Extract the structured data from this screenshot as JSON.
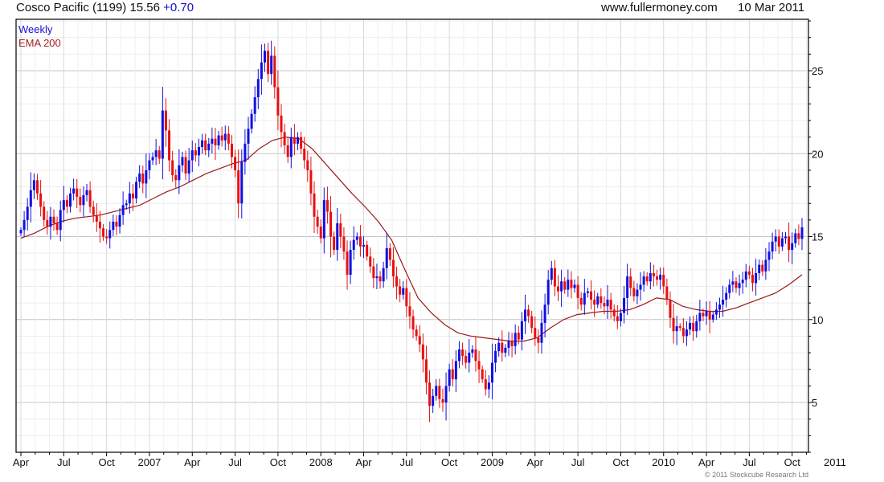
{
  "header": {
    "title": "Cosco Pacific (1199) 15.56",
    "change": "+0.70",
    "site": "www.fullermoney.com",
    "date": "10 Mar 2011"
  },
  "legend": {
    "series1": "Weekly",
    "series2": "EMA 200"
  },
  "footer": {
    "copyright": "© 2011 Stockcube Research Ltd"
  },
  "colors": {
    "up": "#1010e0",
    "down": "#e81010",
    "ema": "#9a1a1a"
  },
  "chart_data": {
    "type": "candlestick",
    "title": "Cosco Pacific (1199)",
    "ylim": [
      2,
      28.1
    ],
    "yticks": [
      5,
      10,
      15,
      20,
      25
    ],
    "xtick_labels": [
      "Apr",
      "Jul",
      "Oct",
      "2007",
      "Apr",
      "Jul",
      "Oct",
      "2008",
      "Apr",
      "Jul",
      "Oct",
      "2009",
      "Apr",
      "Jul",
      "Oct",
      "2010",
      "Apr",
      "Jul",
      "Oct",
      "2011"
    ],
    "period": "Weekly, Apr 2006 - Mar 2011",
    "weekly_close": [
      15.4,
      16.0,
      16.8,
      17.8,
      18.4,
      17.6,
      16.8,
      16.0,
      15.6,
      16.2,
      15.8,
      15.4,
      16.6,
      17.2,
      16.8,
      17.6,
      17.9,
      17.4,
      16.9,
      17.5,
      17.8,
      16.8,
      16.3,
      15.9,
      15.5,
      15.0,
      14.9,
      15.4,
      15.9,
      15.6,
      16.3,
      16.9,
      17.0,
      17.6,
      17.3,
      18.3,
      18.8,
      18.2,
      19.0,
      19.6,
      19.8,
      20.2,
      19.7,
      22.6,
      21.4,
      19.6,
      18.7,
      18.4,
      19.3,
      19.8,
      18.8,
      19.6,
      20.2,
      19.9,
      20.4,
      20.8,
      20.2,
      20.6,
      20.9,
      20.5,
      21.1,
      20.8,
      21.2,
      20.6,
      19.8,
      19.0,
      17.0,
      19.5,
      20.6,
      21.5,
      22.4,
      23.4,
      24.5,
      25.5,
      26.2,
      24.8,
      25.9,
      24.0,
      22.3,
      21.3,
      20.5,
      19.8,
      21.0,
      20.6,
      21.0,
      20.3,
      19.6,
      19.0,
      17.6,
      16.2,
      15.6,
      14.9,
      17.2,
      16.5,
      15.0,
      14.2,
      15.8,
      15.0,
      14.1,
      12.7,
      14.2,
      14.8,
      15.0,
      14.4,
      14.5,
      13.8,
      13.2,
      12.5,
      12.6,
      12.3,
      13.1,
      14.3,
      13.6,
      12.6,
      12.0,
      11.5,
      11.9,
      10.8,
      10.2,
      9.4,
      9.0,
      8.5,
      7.6,
      6.2,
      4.8,
      5.4,
      6.0,
      5.2,
      5.0,
      6.0,
      7.0,
      6.4,
      7.5,
      8.2,
      7.8,
      7.4,
      8.0,
      8.2,
      7.5,
      7.0,
      6.4,
      5.8,
      6.2,
      7.4,
      8.1,
      8.6,
      8.0,
      8.3,
      8.7,
      8.4,
      9.2,
      8.8,
      9.9,
      10.6,
      10.2,
      9.5,
      8.9,
      8.6,
      9.8,
      10.9,
      12.4,
      13.1,
      12.0,
      11.7,
      12.3,
      11.8,
      12.4,
      11.9,
      12.1,
      11.3,
      10.9,
      11.6,
      11.7,
      11.2,
      10.9,
      11.4,
      11.0,
      10.8,
      11.2,
      10.6,
      10.2,
      9.9,
      10.4,
      11.3,
      12.6,
      11.9,
      11.4,
      11.8,
      12.1,
      12.6,
      12.3,
      12.8,
      12.6,
      12.4,
      12.7,
      12.0,
      11.2,
      10.1,
      9.3,
      9.6,
      9.5,
      9.0,
      9.4,
      9.8,
      9.3,
      9.9,
      10.4,
      10.2,
      10.5,
      10.0,
      10.3,
      10.6,
      10.9,
      11.2,
      11.6,
      12.1,
      12.3,
      11.9,
      12.2,
      12.4,
      12.9,
      12.7,
      12.2,
      12.8,
      13.3,
      12.9,
      13.6,
      14.1,
      14.7,
      15.0,
      14.4,
      14.9,
      15.0,
      14.2,
      14.6,
      15.2,
      14.86,
      15.56
    ],
    "first_open": 15.2,
    "ema200_monthly": [
      14.9,
      15.2,
      15.6,
      15.9,
      16.1,
      16.2,
      16.3,
      16.5,
      16.7,
      16.9,
      17.3,
      17.7,
      18.0,
      18.4,
      18.8,
      19.1,
      19.4,
      19.6,
      20.3,
      20.8,
      21.0,
      20.9,
      20.3,
      19.4,
      18.5,
      17.6,
      16.8,
      15.9,
      14.8,
      13.0,
      11.3,
      10.4,
      9.7,
      9.2,
      9.0,
      8.9,
      8.8,
      8.7,
      8.7,
      8.9,
      9.5,
      10.0,
      10.3,
      10.4,
      10.5,
      10.5,
      10.6,
      10.9,
      11.3,
      11.2,
      10.8,
      10.6,
      10.5,
      10.5,
      10.7,
      11.0,
      11.3,
      11.6,
      12.1,
      12.7
    ]
  }
}
